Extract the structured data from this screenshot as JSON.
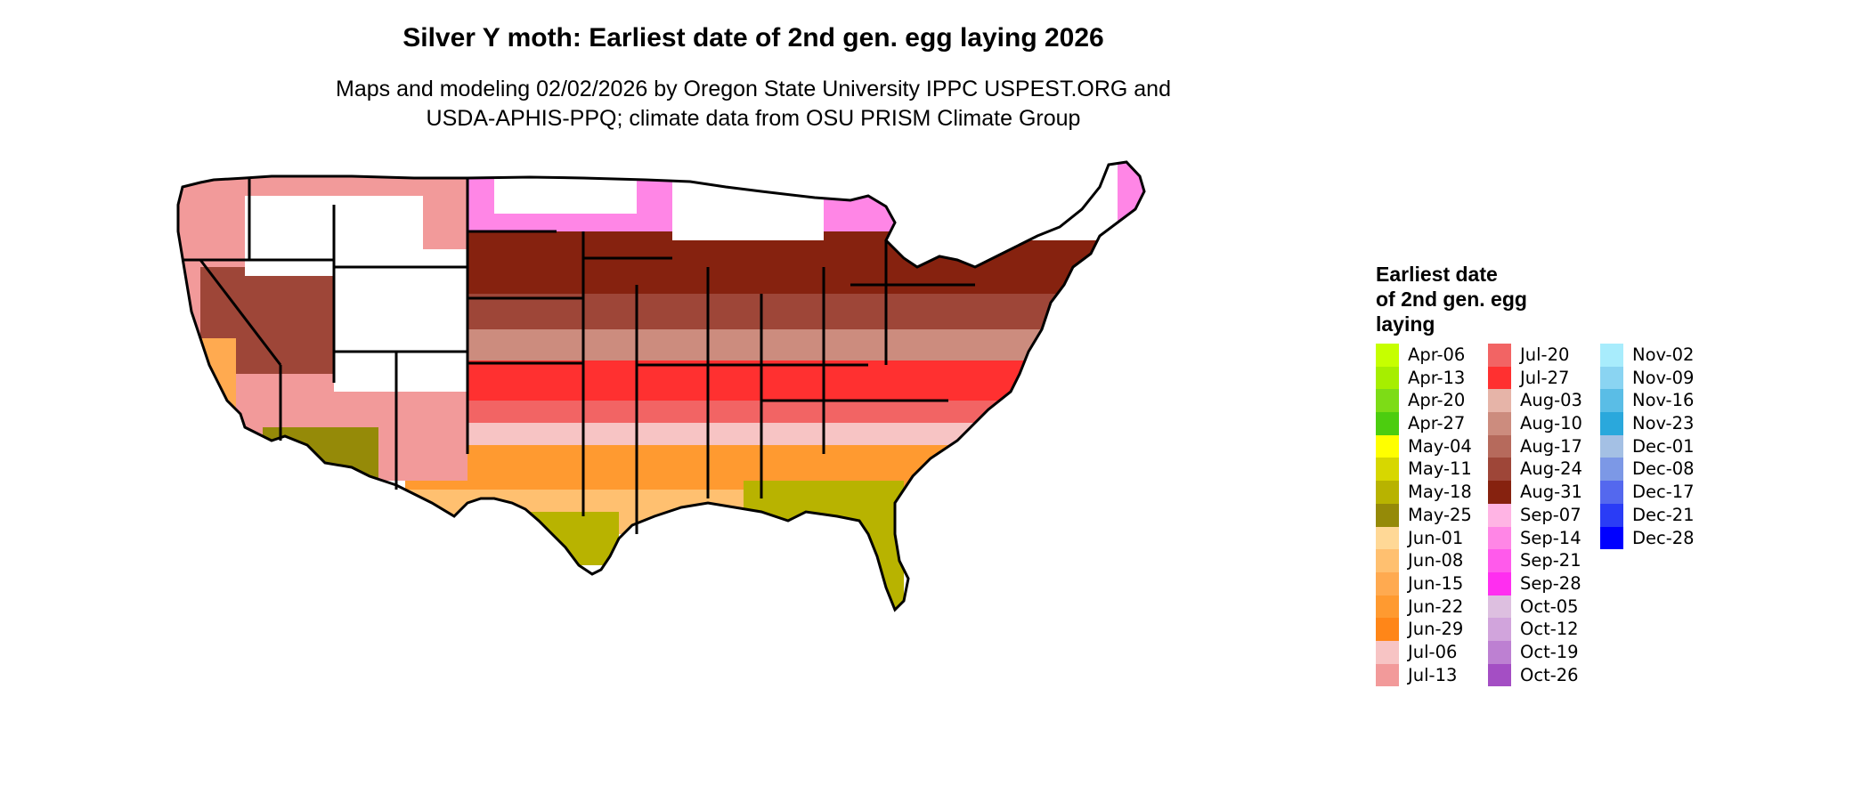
{
  "header": {
    "title": "Silver Y moth: Earliest date of 2nd gen. egg laying 2026",
    "subtitle_line1": "Maps and modeling 02/02/2026 by Oregon State University IPPC USPEST.ORG and",
    "subtitle_line2": "USDA-APHIS-PPQ; climate data from OSU PRISM Climate Group"
  },
  "legend": {
    "title_line1": "Earliest date",
    "title_line2": "of 2nd gen. egg",
    "title_line3": "laying",
    "columns": [
      [
        {
          "label": "Apr-06",
          "color": "#c6ff00"
        },
        {
          "label": "Apr-13",
          "color": "#a6ee00"
        },
        {
          "label": "Apr-20",
          "color": "#7ddc16"
        },
        {
          "label": "Apr-27",
          "color": "#4ccd0f"
        },
        {
          "label": "May-04",
          "color": "#ffff00"
        },
        {
          "label": "May-11",
          "color": "#d7d700"
        },
        {
          "label": "May-18",
          "color": "#b8b300"
        },
        {
          "label": "May-25",
          "color": "#958a08"
        },
        {
          "label": "Jun-01",
          "color": "#ffd896"
        },
        {
          "label": "Jun-08",
          "color": "#ffc070"
        },
        {
          "label": "Jun-15",
          "color": "#ffaa50"
        },
        {
          "label": "Jun-22",
          "color": "#ff9a30"
        },
        {
          "label": "Jun-29",
          "color": "#ff8618"
        },
        {
          "label": "Jul-06",
          "color": "#f7c4c4"
        },
        {
          "label": "Jul-13",
          "color": "#f29a9a"
        }
      ],
      [
        {
          "label": "Jul-20",
          "color": "#f26464"
        },
        {
          "label": "Jul-27",
          "color": "#ff3030"
        },
        {
          "label": "Aug-03",
          "color": "#e6b4a8"
        },
        {
          "label": "Aug-10",
          "color": "#cc8c7e"
        },
        {
          "label": "Aug-17",
          "color": "#b66a5c"
        },
        {
          "label": "Aug-24",
          "color": "#9e4638"
        },
        {
          "label": "Aug-31",
          "color": "#86220f"
        },
        {
          "label": "Sep-07",
          "color": "#ffb4e4"
        },
        {
          "label": "Sep-14",
          "color": "#ff86e6"
        },
        {
          "label": "Sep-21",
          "color": "#ff5aeb"
        },
        {
          "label": "Sep-28",
          "color": "#ff2ef0"
        },
        {
          "label": "Oct-05",
          "color": "#ddbfe0"
        },
        {
          "label": "Oct-12",
          "color": "#d1a4dc"
        },
        {
          "label": "Oct-19",
          "color": "#bd80d2"
        },
        {
          "label": "Oct-26",
          "color": "#a44ec4"
        }
      ],
      [
        {
          "label": "Nov-02",
          "color": "#a8ecfc"
        },
        {
          "label": "Nov-09",
          "color": "#8ad4f2"
        },
        {
          "label": "Nov-16",
          "color": "#5abde6"
        },
        {
          "label": "Nov-23",
          "color": "#2aa8dc"
        },
        {
          "label": "Dec-01",
          "color": "#a4c0e4"
        },
        {
          "label": "Dec-08",
          "color": "#7c98e6"
        },
        {
          "label": "Dec-17",
          "color": "#5468ee"
        },
        {
          "label": "Dec-21",
          "color": "#2a3cf6"
        },
        {
          "label": "Dec-28",
          "color": "#0000ff"
        }
      ]
    ]
  }
}
